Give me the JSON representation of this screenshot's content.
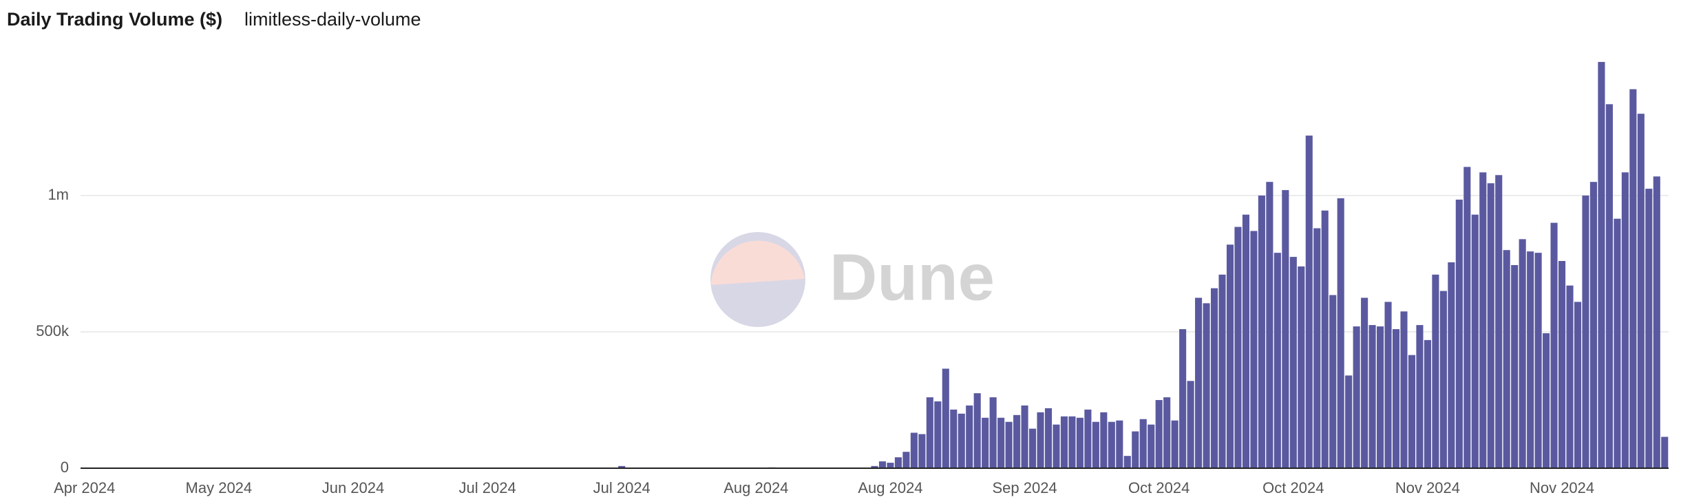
{
  "chart_data": {
    "type": "bar",
    "title": "Daily Trading Volume ($)",
    "subtitle": "limitless-daily-volume",
    "watermark": "Dune",
    "color": "#5a59a0",
    "grid": true,
    "categories": [
      null,
      null,
      null,
      null,
      null,
      null,
      null,
      null,
      null,
      null,
      null,
      null,
      null,
      null,
      null,
      null,
      null,
      null,
      null,
      null,
      null,
      null,
      null,
      null,
      null,
      null,
      null,
      null,
      null,
      null,
      null,
      null,
      null,
      null,
      null,
      null,
      null,
      null,
      null,
      null,
      null,
      null,
      null,
      null,
      null,
      null,
      null,
      null,
      null,
      null,
      null,
      null,
      null,
      null,
      null,
      null,
      null,
      null,
      null,
      null,
      null,
      null,
      null,
      null,
      null,
      null,
      null,
      null,
      null,
      null,
      null,
      null,
      null,
      null,
      null,
      null,
      null,
      null,
      null,
      null,
      null,
      null,
      null,
      null,
      null,
      null,
      null,
      null,
      null,
      null,
      null,
      null,
      null,
      null,
      null,
      null,
      null,
      null,
      null,
      null,
      null,
      null,
      null,
      null,
      null,
      null,
      null,
      null,
      null,
      null,
      null,
      null,
      null,
      null,
      null,
      null,
      null,
      null,
      null,
      null,
      null,
      null,
      null,
      null,
      null,
      null,
      null,
      null,
      null,
      null,
      null,
      null,
      null,
      null,
      null,
      null,
      null,
      null,
      null,
      null,
      null,
      null,
      null,
      null,
      null,
      null,
      null,
      null,
      null,
      null,
      null,
      null,
      null,
      null,
      null,
      null,
      null,
      null,
      null,
      null,
      null,
      null,
      null,
      null,
      null,
      null,
      null,
      null,
      null,
      null,
      null,
      null,
      null,
      null,
      null,
      null,
      null,
      null,
      null,
      null,
      null,
      null,
      null,
      null,
      null,
      null,
      null,
      null,
      null,
      null,
      null,
      null,
      null,
      null,
      null,
      null,
      null,
      null,
      null,
      null,
      null
    ],
    "values": [
      0,
      0,
      0,
      0,
      0,
      0,
      0,
      0,
      2000,
      0,
      0,
      0,
      0,
      0,
      0,
      0,
      0,
      0,
      0,
      0,
      0,
      0,
      0,
      0,
      0,
      0,
      0,
      0,
      0,
      0,
      0,
      0,
      0,
      0,
      0,
      0,
      0,
      0,
      0,
      0,
      0,
      0,
      0,
      0,
      0,
      0,
      0,
      0,
      0,
      0,
      0,
      1000,
      0,
      0,
      0,
      0,
      0,
      0,
      0,
      0,
      0,
      0,
      0,
      0,
      0,
      0,
      0,
      0,
      8000,
      0,
      0,
      0,
      0,
      0,
      0,
      0,
      0,
      0,
      0,
      0,
      0,
      0,
      0,
      0,
      0,
      0,
      0,
      3000,
      0,
      0,
      0,
      0,
      0,
      0,
      0,
      0,
      0,
      0,
      0,
      0,
      8000,
      25000,
      20000,
      40000,
      60000,
      130000,
      125000,
      260000,
      245000,
      365000,
      215000,
      200000,
      230000,
      275000,
      185000,
      260000,
      185000,
      170000,
      195000,
      230000,
      145000,
      205000,
      220000,
      160000,
      190000,
      190000,
      185000,
      215000,
      170000,
      205000,
      170000,
      175000,
      45000,
      135000,
      180000,
      160000,
      250000,
      260000,
      175000,
      510000,
      320000,
      625000,
      605000,
      660000,
      710000,
      820000,
      885000,
      930000,
      870000,
      1000000,
      1050000,
      790000,
      1020000,
      775000,
      740000,
      1220000,
      880000,
      945000,
      635000,
      990000,
      340000,
      520000,
      625000,
      525000,
      520000,
      610000,
      510000,
      575000,
      415000,
      525000,
      470000,
      710000,
      650000,
      755000,
      985000,
      1105000,
      930000,
      1085000,
      1045000,
      1075000,
      800000,
      745000,
      840000,
      795000,
      790000,
      495000,
      900000,
      760000,
      670000,
      610000,
      1000000,
      1050000,
      1490000,
      1335000,
      915000,
      1085000,
      1390000,
      1300000,
      1025000,
      1070000,
      115000
    ],
    "ylim": [
      0,
      1500000
    ],
    "yticks": [
      0,
      {
        "value": 500000,
        "label": "500k"
      },
      {
        "value": 1000000,
        "label": "1m"
      }
    ],
    "xticks": [
      {
        "value": 0,
        "label": "Apr 2024"
      },
      {
        "value": 17,
        "label": "May 2024"
      },
      {
        "value": 34,
        "label": "Jun 2024"
      },
      {
        "value": 51,
        "label": "Jul 2024"
      },
      {
        "value": 68,
        "label": "Jul 2024"
      },
      {
        "value": 85,
        "label": "Aug 2024"
      },
      {
        "value": 102,
        "label": "Aug 2024"
      },
      {
        "value": 119,
        "label": "Sep 2024"
      },
      {
        "value": 136,
        "label": "Oct 2024"
      },
      {
        "value": 153,
        "label": "Oct 2024"
      },
      {
        "value": 170,
        "label": "Nov 2024"
      },
      {
        "value": 187,
        "label": "Nov 2024"
      }
    ]
  }
}
